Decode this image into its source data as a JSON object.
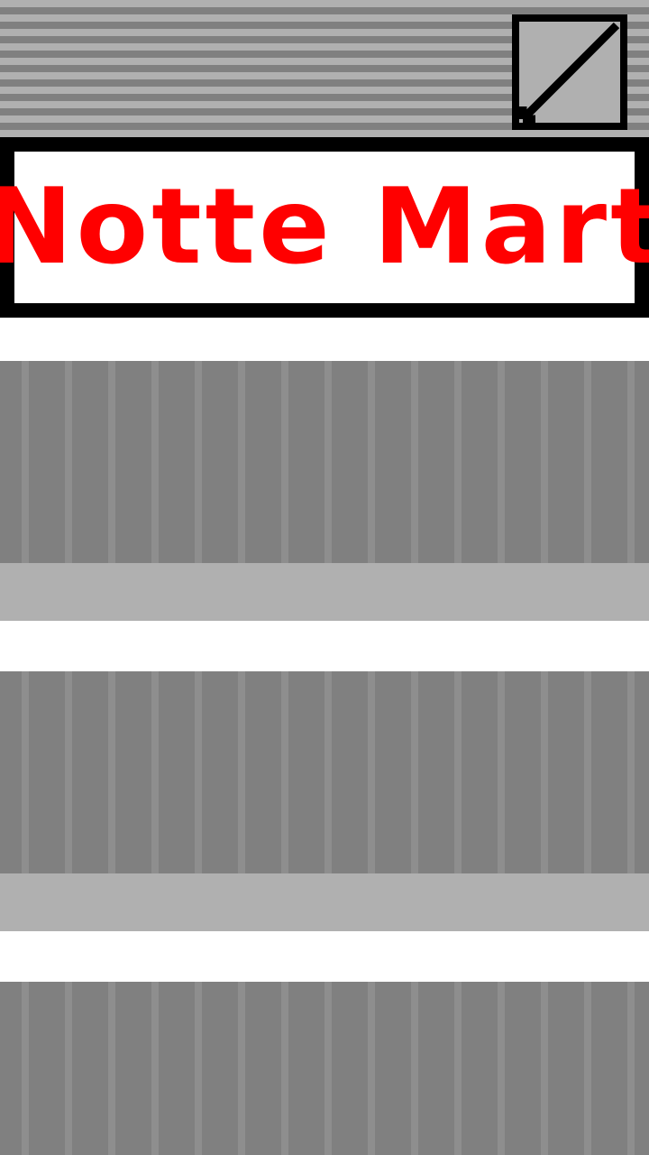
{
  "store": {
    "name": "Notte Mart"
  },
  "controls": {
    "close_icon": "close-slash-icon"
  },
  "colors": {
    "sign_text": "#ff0000",
    "sign_border": "#000000",
    "stripe_light": "#b0b0b0",
    "stripe_dark": "#808080",
    "shelf": "#808080",
    "ledge": "#b0b0b0"
  }
}
